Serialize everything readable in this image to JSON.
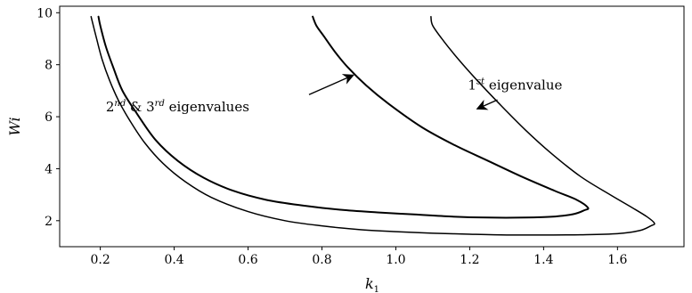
{
  "chart_data": {
    "type": "line",
    "xlabel_base": "k",
    "xlabel_sub": "1",
    "ylabel": "Wi",
    "xlim": [
      0.09,
      1.78
    ],
    "ylim": [
      1.0,
      10.25
    ],
    "xticks": [
      "0.2",
      "0.4",
      "0.6",
      "0.8",
      "1.0",
      "1.2",
      "1.4",
      "1.6"
    ],
    "yticks": [
      "2",
      "4",
      "6",
      "8",
      "10"
    ],
    "grid": false,
    "series": [
      {
        "x": [
          0.175,
          0.19,
          0.205,
          0.225,
          0.25,
          0.28,
          0.32,
          0.37,
          0.43,
          0.5,
          0.6,
          0.7,
          0.8,
          0.9,
          1.0,
          1.1,
          1.2,
          1.3,
          1.4,
          1.5,
          1.6,
          1.66,
          1.69,
          1.7,
          1.68,
          1.64,
          1.58,
          1.5,
          1.42,
          1.35,
          1.28,
          1.22,
          1.17,
          1.13,
          1.1,
          1.095
        ],
        "y": [
          9.85,
          9.0,
          8.2,
          7.4,
          6.6,
          5.85,
          5.0,
          4.2,
          3.5,
          2.9,
          2.35,
          2.0,
          1.8,
          1.66,
          1.58,
          1.52,
          1.48,
          1.45,
          1.45,
          1.46,
          1.5,
          1.62,
          1.8,
          1.9,
          2.15,
          2.5,
          3.0,
          3.7,
          4.6,
          5.5,
          6.5,
          7.4,
          8.2,
          8.9,
          9.5,
          9.85
        ],
        "stroke": 1.5
      },
      {
        "x": [
          0.195,
          0.2,
          0.215,
          0.235,
          0.26,
          0.3,
          0.35,
          0.41,
          0.48,
          0.56,
          0.65,
          0.75,
          0.85,
          0.95,
          1.05,
          1.15,
          1.25,
          1.35,
          1.42,
          1.48,
          1.51,
          1.52,
          1.49,
          1.43,
          1.34,
          1.25,
          1.16,
          1.07,
          0.98,
          0.92,
          0.87,
          0.835,
          0.805,
          0.785,
          0.775
        ],
        "y": [
          9.85,
          9.5,
          8.7,
          7.9,
          7.0,
          6.1,
          5.1,
          4.3,
          3.65,
          3.15,
          2.8,
          2.58,
          2.42,
          2.32,
          2.24,
          2.16,
          2.12,
          2.12,
          2.15,
          2.25,
          2.4,
          2.5,
          2.8,
          3.15,
          3.7,
          4.3,
          4.9,
          5.6,
          6.5,
          7.2,
          7.9,
          8.5,
          9.1,
          9.5,
          9.85
        ],
        "stroke": 2.0
      }
    ],
    "annotations": [
      {
        "base": "2",
        "sup1": "nd",
        "mid": " & 3",
        "sup2": "rd",
        "rest": " eigenvalues",
        "text_at": [
          0.215,
          6.2
        ],
        "arrow_from": [
          0.765,
          6.85
        ],
        "arrow_to": [
          0.885,
          7.6
        ]
      },
      {
        "base": "1",
        "sup1": "st",
        "mid": "",
        "sup2": "",
        "rest": " eigenvalue",
        "text_at": [
          1.195,
          7.05
        ],
        "arrow_from": [
          1.275,
          6.65
        ],
        "arrow_to": [
          1.22,
          6.3
        ]
      }
    ]
  }
}
